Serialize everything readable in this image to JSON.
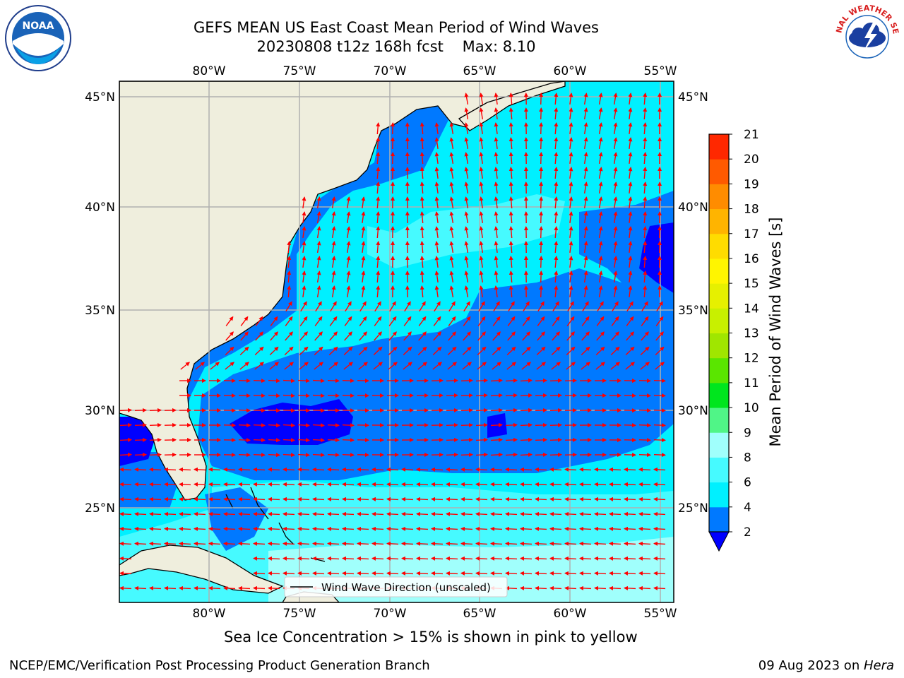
{
  "title": "GEFS MEAN US East Coast Mean Period of Wind Waves",
  "subtitle": "20230808 t12z 168h fcst    Max: 8.10",
  "map": {
    "lon_ticks": [
      "80°W",
      "75°W",
      "70°W",
      "65°W",
      "60°W",
      "55°W"
    ],
    "lat_ticks": [
      "45°N",
      "40°N",
      "35°N",
      "30°N",
      "25°N"
    ],
    "lon_range": [
      -85,
      -54.3
    ],
    "lat_range": [
      20.5,
      45.8
    ],
    "land_color": "#efeedd",
    "grid": true,
    "legend": "Wind Wave Direction (unscaled)",
    "vector_color": "#ff0000"
  },
  "colorbar": {
    "label": "Mean Period of Wind Waves [s]",
    "ticks": [
      "2",
      "4",
      "6",
      "8",
      "9",
      "10",
      "11",
      "12",
      "13",
      "14",
      "15",
      "16",
      "17",
      "18",
      "19",
      "20",
      "21"
    ],
    "colors": [
      "#0079ff",
      "#00f0ff",
      "#46faff",
      "#a0fffc",
      "#50f587",
      "#00e61e",
      "#5ae600",
      "#a0e600",
      "#c8f000",
      "#e6f000",
      "#fff500",
      "#ffdc00",
      "#ffb400",
      "#ff8c00",
      "#ff5a00",
      "#ff2800"
    ],
    "under_color": "#0000ff"
  },
  "note": "Sea Ice Concentration > 15% is shown in pink to yellow",
  "footer": {
    "left": "NCEP/EMC/Verification Post Processing Product Generation Branch",
    "date": "09 Aug 2023 on ",
    "host": "Hera"
  },
  "logos": {
    "noaa": "NOAA",
    "nws": "NATIONAL WEATHER SERVICE"
  }
}
